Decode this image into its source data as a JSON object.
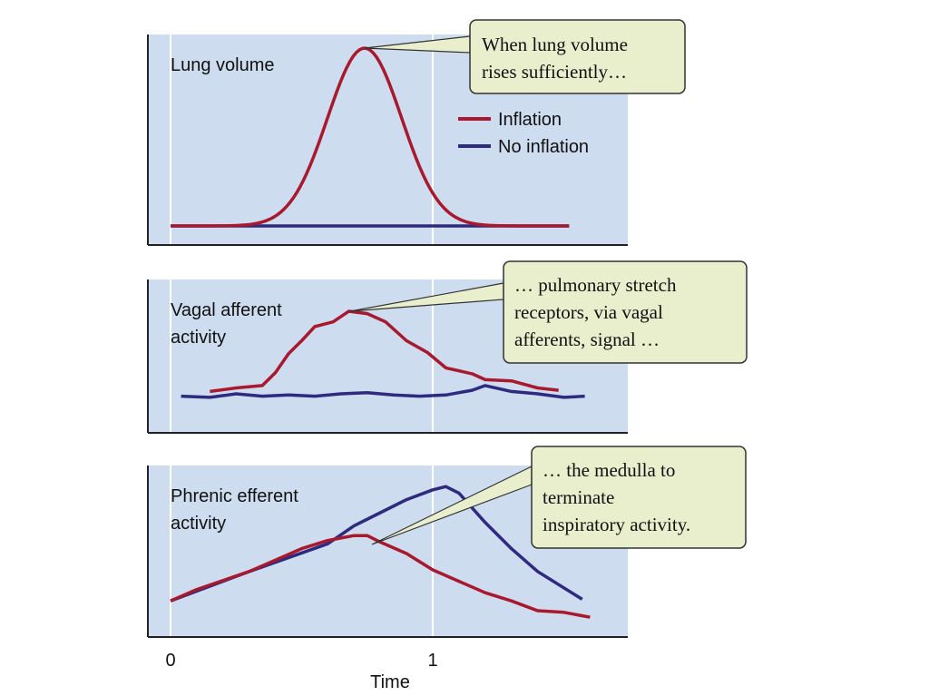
{
  "colors": {
    "inflation": "#a8192e",
    "no_inflation": "#2e2a80",
    "panel_bg": "#cedcf0",
    "callout_bg": "#e9eecd"
  },
  "chart_data": [
    {
      "type": "line",
      "title": "Lung volume",
      "xlim": [
        0,
        1.75
      ],
      "ylim": [
        0,
        1
      ],
      "series": [
        {
          "name": "Inflation",
          "x": [
            0,
            0.2,
            0.35,
            0.42,
            0.5,
            0.58,
            0.66,
            0.74,
            0.82,
            0.9,
            0.98,
            1.06,
            1.13,
            1.28,
            1.52
          ],
          "y": [
            0,
            0.01,
            0.05,
            0.2,
            0.5,
            0.8,
            0.97,
            1.0,
            0.97,
            0.8,
            0.5,
            0.2,
            0.05,
            0.01,
            0
          ]
        },
        {
          "name": "No inflation",
          "x": [
            0,
            1.52
          ],
          "y": [
            0,
            0
          ]
        }
      ],
      "legend": [
        "Inflation",
        "No inflation"
      ],
      "callout": [
        "When lung volume",
        "rises sufficiently…"
      ]
    },
    {
      "type": "line",
      "title": [
        "Vagal afferent",
        "activity"
      ],
      "xlim": [
        0,
        1.75
      ],
      "ylim": [
        0,
        1
      ],
      "series": [
        {
          "name": "Inflation",
          "x": [
            0.15,
            0.25,
            0.35,
            0.4,
            0.45,
            0.5,
            0.55,
            0.62,
            0.68,
            0.75,
            0.82,
            0.9,
            0.98,
            1.05,
            1.15,
            1.2,
            1.3,
            1.4,
            1.48
          ],
          "y": [
            0.22,
            0.25,
            0.27,
            0.38,
            0.54,
            0.65,
            0.77,
            0.81,
            0.9,
            0.88,
            0.81,
            0.65,
            0.55,
            0.42,
            0.37,
            0.32,
            0.31,
            0.25,
            0.23
          ]
        },
        {
          "name": "No inflation",
          "x": [
            0.04,
            0.15,
            0.25,
            0.35,
            0.45,
            0.55,
            0.65,
            0.75,
            0.85,
            0.95,
            1.05,
            1.15,
            1.2,
            1.3,
            1.4,
            1.5,
            1.58
          ],
          "y": [
            0.18,
            0.17,
            0.2,
            0.18,
            0.19,
            0.18,
            0.2,
            0.21,
            0.19,
            0.18,
            0.19,
            0.23,
            0.27,
            0.22,
            0.2,
            0.17,
            0.18
          ]
        }
      ],
      "callout": [
        "… pulmonary stretch",
        "receptors, via vagal",
        "afferents, signal …"
      ]
    },
    {
      "type": "line",
      "title": [
        "Phrenic efferent",
        "activity"
      ],
      "xlim": [
        0,
        1.75
      ],
      "ylim": [
        0,
        1
      ],
      "xticks": [
        "0",
        "1"
      ],
      "xlabel": "Time",
      "series": [
        {
          "name": "Inflation",
          "x": [
            0,
            0.1,
            0.3,
            0.5,
            0.6,
            0.7,
            0.75,
            0.8,
            0.9,
            1.0,
            1.1,
            1.2,
            1.3,
            1.4,
            1.5,
            1.6
          ],
          "y": [
            0.21,
            0.28,
            0.39,
            0.53,
            0.58,
            0.61,
            0.61,
            0.57,
            0.5,
            0.4,
            0.33,
            0.26,
            0.21,
            0.15,
            0.14,
            0.11
          ]
        },
        {
          "name": "No inflation",
          "x": [
            0,
            0.3,
            0.6,
            0.7,
            0.8,
            0.9,
            1.0,
            1.05,
            1.1,
            1.2,
            1.3,
            1.4,
            1.5,
            1.57
          ],
          "y": [
            0.21,
            0.39,
            0.56,
            0.67,
            0.75,
            0.83,
            0.89,
            0.91,
            0.87,
            0.69,
            0.53,
            0.39,
            0.29,
            0.22
          ]
        }
      ],
      "callout": [
        "… the medulla to",
        "terminate",
        "inspiratory activity."
      ]
    }
  ]
}
